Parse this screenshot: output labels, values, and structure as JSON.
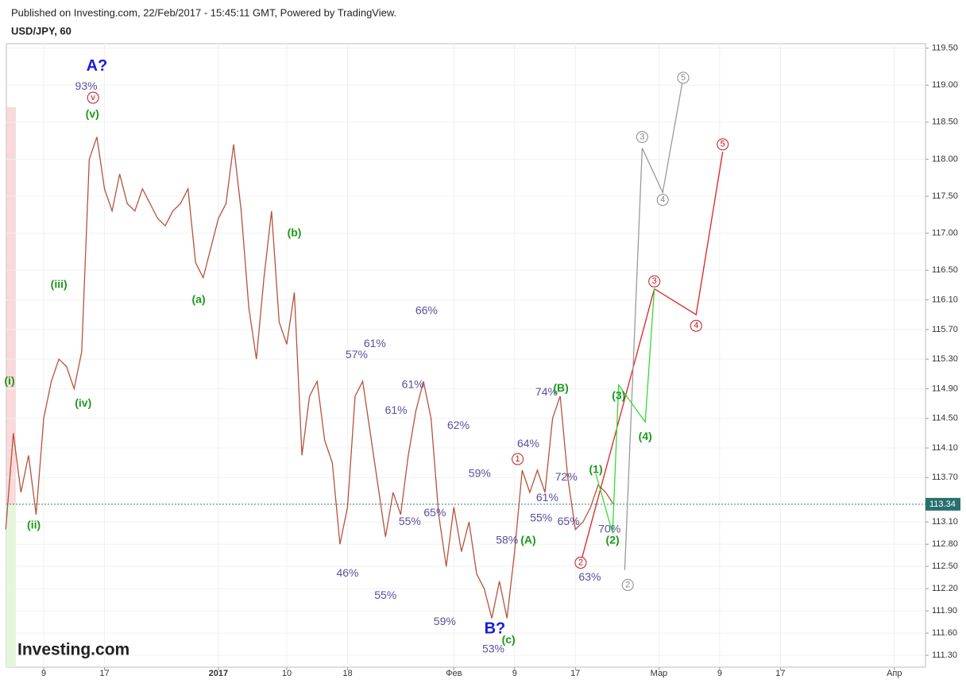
{
  "header": {
    "published": "Published on Investing.com, 22/Feb/2017 - 15:45:11 GMT, Powered by TradingView.",
    "symbol": "USD/JPY, 60"
  },
  "logo": "Investing.com",
  "chart_data": {
    "type": "line",
    "x": [
      4,
      5,
      6,
      7,
      8,
      9,
      10,
      11,
      12,
      13,
      14,
      15,
      16,
      17,
      18,
      19,
      20,
      21,
      22,
      23,
      24,
      25,
      26,
      27,
      28,
      29,
      30,
      31,
      32,
      33,
      34,
      35,
      36,
      37,
      38,
      39,
      40,
      41,
      42,
      43,
      44,
      45,
      46,
      47,
      48,
      49,
      50,
      51,
      52,
      53,
      54,
      55,
      56,
      57,
      58,
      59,
      60,
      61,
      62,
      63,
      64,
      65,
      66,
      67,
      68,
      69,
      70,
      71,
      72,
      73,
      74,
      75,
      76,
      77,
      78,
      79,
      80,
      81,
      82,
      83,
      84
    ],
    "series": [
      {
        "color": "#b5533c",
        "values": [
          113.0,
          114.3,
          113.5,
          114.0,
          113.2,
          114.5,
          115.0,
          115.3,
          115.2,
          114.9,
          115.4,
          118.0,
          118.3,
          117.6,
          117.3,
          117.8,
          117.4,
          117.3,
          117.6,
          117.4,
          117.2,
          117.1,
          117.3,
          117.4,
          117.6,
          116.6,
          116.4,
          116.8,
          117.2,
          117.4,
          118.2,
          117.3,
          116.0,
          115.3,
          116.4,
          117.3,
          115.8,
          115.5,
          116.2,
          114.0,
          114.8,
          115.0,
          114.2,
          113.9,
          112.8,
          113.3,
          114.8,
          115.0,
          114.3,
          113.6,
          112.9,
          113.5,
          113.2,
          114.0,
          114.6,
          115.0,
          114.5,
          113.2,
          112.5,
          113.3,
          112.7,
          113.1,
          112.4,
          112.2,
          111.8,
          112.3,
          111.8,
          112.7,
          113.8,
          113.5,
          113.8,
          113.5,
          114.5,
          114.8,
          113.7,
          113.0,
          113.1,
          113.3,
          113.6,
          113.5,
          113.34
        ]
      }
    ],
    "projections": [
      {
        "color": "#e02020",
        "x": [
          79.7,
          89.4,
          94.9,
          98.4
        ],
        "y": [
          112.55,
          116.25,
          115.9,
          118.1
        ]
      },
      {
        "color": "#9a9a9a",
        "x": [
          85.5,
          87.8,
          90.5,
          93.2
        ],
        "y": [
          112.45,
          118.15,
          117.55,
          119.1
        ]
      },
      {
        "color": "#33dd33",
        "x": [
          81.7,
          83.9,
          84.7,
          88.2,
          89.4
        ],
        "y": [
          113.75,
          112.95,
          114.95,
          114.45,
          116.25
        ]
      }
    ],
    "annotations": [
      {
        "text": "A?",
        "x": 16,
        "y": 119.25,
        "color": "#1a1adb"
      },
      {
        "text": "93%",
        "x": 14.6,
        "y": 118.98,
        "color": "#5b4d9e"
      },
      {
        "text": "v",
        "x": 15.5,
        "y": 118.83,
        "color": "#c0161a"
      },
      {
        "text": "(v)",
        "x": 15.4,
        "y": 118.6,
        "color": "#1a9a1a"
      },
      {
        "text": "(iii)",
        "x": 11,
        "y": 116.3,
        "color": "#1a9a1a"
      },
      {
        "text": "(iv)",
        "x": 14.2,
        "y": 114.7,
        "color": "#1a9a1a"
      },
      {
        "text": "(ii)",
        "x": 7.7,
        "y": 113.05,
        "color": "#1a9a1a"
      },
      {
        "text": "(i)",
        "x": 4.5,
        "y": 115.0,
        "color": "#1a9a1a"
      },
      {
        "text": "(a)",
        "x": 29.4,
        "y": 116.1,
        "color": "#1a9a1a"
      },
      {
        "text": "(b)",
        "x": 42,
        "y": 117.0,
        "color": "#1a9a1a"
      },
      {
        "text": "(c)",
        "x": 70.2,
        "y": 111.5,
        "color": "#1a9a1a"
      },
      {
        "text": "B?",
        "x": 68.4,
        "y": 111.65,
        "color": "#1a1adb"
      },
      {
        "text": "53%",
        "x": 68.2,
        "y": 111.38,
        "color": "#5b4d9e"
      },
      {
        "text": "66%",
        "x": 59.4,
        "y": 115.95,
        "color": "#5b4d9e"
      },
      {
        "text": "57%",
        "x": 50.2,
        "y": 115.35,
        "color": "#5b4d9e"
      },
      {
        "text": "61%",
        "x": 52.6,
        "y": 115.5,
        "color": "#5b4d9e"
      },
      {
        "text": "61%",
        "x": 57.6,
        "y": 114.95,
        "color": "#5b4d9e"
      },
      {
        "text": "61%",
        "x": 55.4,
        "y": 114.6,
        "color": "#5b4d9e"
      },
      {
        "text": "62%",
        "x": 63.6,
        "y": 114.4,
        "color": "#5b4d9e"
      },
      {
        "text": "59%",
        "x": 66.4,
        "y": 113.75,
        "color": "#5b4d9e"
      },
      {
        "text": "65%",
        "x": 60.5,
        "y": 113.22,
        "color": "#5b4d9e"
      },
      {
        "text": "55%",
        "x": 57.2,
        "y": 113.1,
        "color": "#5b4d9e"
      },
      {
        "text": "46%",
        "x": 49,
        "y": 112.4,
        "color": "#5b4d9e"
      },
      {
        "text": "55%",
        "x": 54,
        "y": 112.1,
        "color": "#5b4d9e"
      },
      {
        "text": "59%",
        "x": 61.8,
        "y": 111.75,
        "color": "#5b4d9e"
      },
      {
        "text": "58%",
        "x": 70,
        "y": 112.85,
        "color": "#5b4d9e"
      },
      {
        "text": "64%",
        "x": 72.8,
        "y": 114.15,
        "color": "#5b4d9e"
      },
      {
        "text": "74%",
        "x": 75.2,
        "y": 114.85,
        "color": "#5b4d9e"
      },
      {
        "text": "72%",
        "x": 77.8,
        "y": 113.7,
        "color": "#5b4d9e"
      },
      {
        "text": "61%",
        "x": 75.3,
        "y": 113.42,
        "color": "#5b4d9e"
      },
      {
        "text": "55%",
        "x": 74.5,
        "y": 113.15,
        "color": "#5b4d9e"
      },
      {
        "text": "65%",
        "x": 78.1,
        "y": 113.1,
        "color": "#5b4d9e"
      },
      {
        "text": "70%",
        "x": 83.5,
        "y": 113.0,
        "color": "#5b4d9e"
      },
      {
        "text": "63%",
        "x": 80.9,
        "y": 112.35,
        "color": "#5b4d9e"
      },
      {
        "text": "1",
        "x": 71.4,
        "y": 113.95,
        "color": "#c0161a"
      },
      {
        "text": "2",
        "x": 79.7,
        "y": 112.55,
        "color": "#c0161a"
      },
      {
        "text": "3",
        "x": 89.4,
        "y": 116.35,
        "color": "#c0161a"
      },
      {
        "text": "4",
        "x": 94.9,
        "y": 115.75,
        "color": "#c0161a"
      },
      {
        "text": "5",
        "x": 98.4,
        "y": 118.2,
        "color": "#c0161a"
      },
      {
        "text": "2",
        "x": 85.9,
        "y": 112.25,
        "color": "#888888"
      },
      {
        "text": "3",
        "x": 87.8,
        "y": 118.3,
        "color": "#888888"
      },
      {
        "text": "4",
        "x": 90.5,
        "y": 117.45,
        "color": "#888888"
      },
      {
        "text": "5",
        "x": 93.2,
        "y": 119.1,
        "color": "#888888"
      },
      {
        "text": "(A)",
        "x": 72.8,
        "y": 112.85,
        "color": "#1a9a1a"
      },
      {
        "text": "(B)",
        "x": 77.1,
        "y": 114.9,
        "color": "#1a9a1a"
      },
      {
        "text": "(1)",
        "x": 81.7,
        "y": 113.8,
        "color": "#1a9a1a"
      },
      {
        "text": "(2)",
        "x": 83.9,
        "y": 112.85,
        "color": "#1a9a1a"
      },
      {
        "text": "(3)",
        "x": 84.7,
        "y": 114.8,
        "color": "#1a9a1a"
      },
      {
        "text": "(4)",
        "x": 88.2,
        "y": 114.25,
        "color": "#1a9a1a"
      }
    ],
    "xlim": [
      4.08,
      125.1
    ],
    "xticks": [
      {
        "value": 9,
        "label": "9"
      },
      {
        "value": 17,
        "label": "17"
      },
      {
        "value": 32,
        "label": "2017"
      },
      {
        "value": 41,
        "label": "10"
      },
      {
        "value": 49,
        "label": "18"
      },
      {
        "value": 63,
        "label": "Фев"
      },
      {
        "value": 71,
        "label": "9"
      },
      {
        "value": 79,
        "label": "17"
      },
      {
        "value": 90,
        "label": "Мар"
      },
      {
        "value": 98,
        "label": "9"
      },
      {
        "value": 106,
        "label": "17"
      },
      {
        "value": 121,
        "label": "Апр"
      }
    ],
    "ylim": [
      111.14,
      119.56
    ],
    "yticks": [
      {
        "value": 119.5,
        "label": "119.50"
      },
      {
        "value": 119,
        "label": "119.00"
      },
      {
        "value": 118.5,
        "label": "118.50"
      },
      {
        "value": 118,
        "label": "118.00"
      },
      {
        "value": 117.5,
        "label": "117.50"
      },
      {
        "value": 117,
        "label": "117.00"
      },
      {
        "value": 116.5,
        "label": "116.50"
      },
      {
        "value": 116.1,
        "label": "116.10"
      },
      {
        "value": 115.7,
        "label": "115.70"
      },
      {
        "value": 115.3,
        "label": "115.30"
      },
      {
        "value": 114.9,
        "label": "114.90"
      },
      {
        "value": 114.5,
        "label": "114.50"
      },
      {
        "value": 114.1,
        "label": "114.10"
      },
      {
        "value": 113.7,
        "label": "113.70"
      },
      {
        "value": 113.1,
        "label": "113.10"
      },
      {
        "value": 112.8,
        "label": "112.80"
      },
      {
        "value": 112.5,
        "label": "112.50"
      },
      {
        "value": 112.2,
        "label": "112.20"
      },
      {
        "value": 111.9,
        "label": "111.90"
      },
      {
        "value": 111.6,
        "label": "111.60"
      },
      {
        "value": 111.3,
        "label": "111.30"
      }
    ],
    "grid": true
  }
}
